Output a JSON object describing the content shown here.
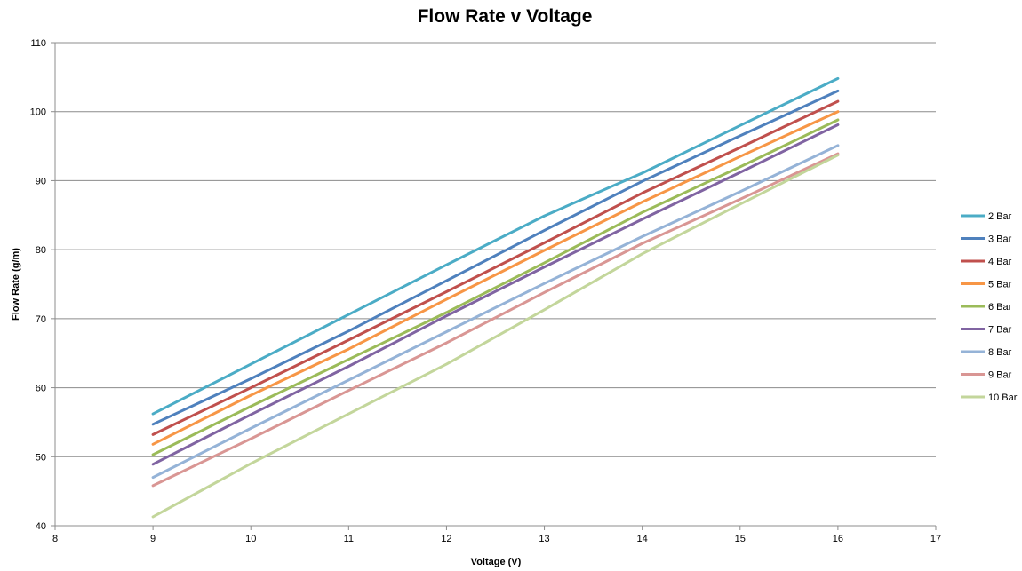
{
  "chart_data": {
    "type": "line",
    "title": "Flow Rate v Voltage",
    "xlabel": "Voltage (V)",
    "ylabel": "Flow Rate (g/m)",
    "xlim": [
      8,
      17
    ],
    "ylim": [
      40,
      110
    ],
    "xticks": [
      "8",
      "9",
      "10",
      "11",
      "12",
      "13",
      "14",
      "15",
      "16",
      "17"
    ],
    "yticks": [
      "40",
      "50",
      "60",
      "70",
      "80",
      "90",
      "100",
      "110"
    ],
    "grid": "horizontal",
    "legend": "right",
    "x": [
      9,
      10,
      11,
      12,
      13,
      14,
      15,
      16
    ],
    "series": [
      {
        "name": "2 Bar",
        "color": "#4bacc6",
        "values": [
          56.2,
          63.4,
          70.6,
          77.8,
          84.9,
          91.1,
          98.0,
          104.8
        ]
      },
      {
        "name": "3 Bar",
        "color": "#4f81bd",
        "values": [
          54.7,
          61.3,
          68.2,
          75.5,
          82.8,
          89.9,
          96.5,
          103.0
        ]
      },
      {
        "name": "4 Bar",
        "color": "#c0504d",
        "values": [
          53.2,
          60.0,
          66.9,
          73.9,
          81.0,
          88.2,
          94.8,
          101.5
        ]
      },
      {
        "name": "5 Bar",
        "color": "#f79646",
        "values": [
          51.8,
          58.9,
          65.6,
          72.8,
          79.9,
          86.9,
          93.5,
          100.0
        ]
      },
      {
        "name": "6 Bar",
        "color": "#9bbb59",
        "values": [
          50.3,
          57.3,
          64.1,
          70.9,
          78.1,
          85.4,
          92.0,
          98.8
        ]
      },
      {
        "name": "7 Bar",
        "color": "#8064a2",
        "values": [
          48.9,
          56.1,
          63.1,
          70.4,
          77.5,
          84.4,
          91.2,
          98.1
        ]
      },
      {
        "name": "8 Bar",
        "color": "#95b3d7",
        "values": [
          47.0,
          54.1,
          61.1,
          68.1,
          75.1,
          81.9,
          88.4,
          95.1
        ]
      },
      {
        "name": "9 Bar",
        "color": "#d99694",
        "values": [
          45.8,
          52.6,
          59.6,
          66.5,
          73.8,
          80.9,
          87.3,
          93.9
        ]
      },
      {
        "name": "10 Bar",
        "color": "#c3d69b",
        "values": [
          41.3,
          49.0,
          56.2,
          63.4,
          71.3,
          79.4,
          86.6,
          93.7
        ]
      }
    ]
  }
}
